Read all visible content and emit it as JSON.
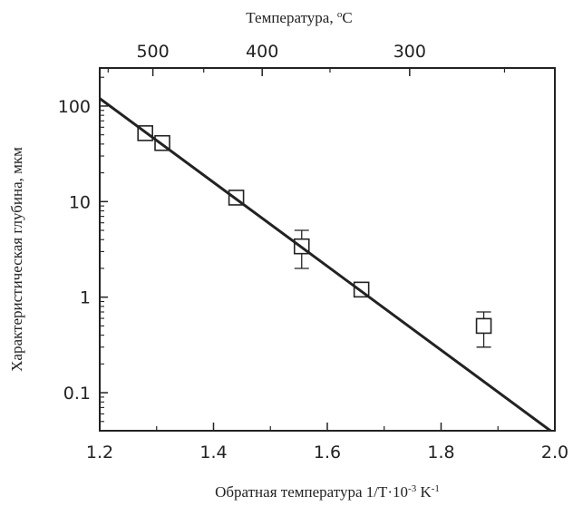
{
  "chart_data": {
    "type": "scatter",
    "xlabel_base": "Обратная температура 1/T·10",
    "xlabel_exp1": "-3",
    "xlabel_mid": " K",
    "xlabel_exp2": "-1",
    "ylabel": "Характеристическая глубина, мкм",
    "top_xlabel_base": "Температура, ",
    "top_xlabel_sup": "o",
    "top_xlabel_unit": "C",
    "xlim": [
      1.2,
      2.0
    ],
    "ylim": [
      0.04,
      250
    ],
    "yscale": "log",
    "x_ticks": [
      "1.2",
      "1.4",
      "1.6",
      "1.8",
      "2.0"
    ],
    "y_ticks": [
      "0.1",
      "1",
      "10",
      "100"
    ],
    "top_ticks": [
      {
        "label": "500",
        "celsius": 500
      },
      {
        "label": "400",
        "celsius": 400
      },
      {
        "label": "300",
        "celsius": 300
      }
    ],
    "points": [
      {
        "x": 1.28,
        "y": 52
      },
      {
        "x": 1.31,
        "y": 41
      },
      {
        "x": 1.44,
        "y": 11
      },
      {
        "x": 1.555,
        "y": 3.4,
        "ylow": 2.0,
        "yhigh": 5.0
      },
      {
        "x": 1.66,
        "y": 1.2
      },
      {
        "x": 1.875,
        "y": 0.5,
        "ylow": 0.3,
        "yhigh": 0.7
      }
    ],
    "fit_line": {
      "x": [
        1.2,
        2.0
      ],
      "y": [
        120,
        0.037
      ]
    },
    "grid": false
  }
}
